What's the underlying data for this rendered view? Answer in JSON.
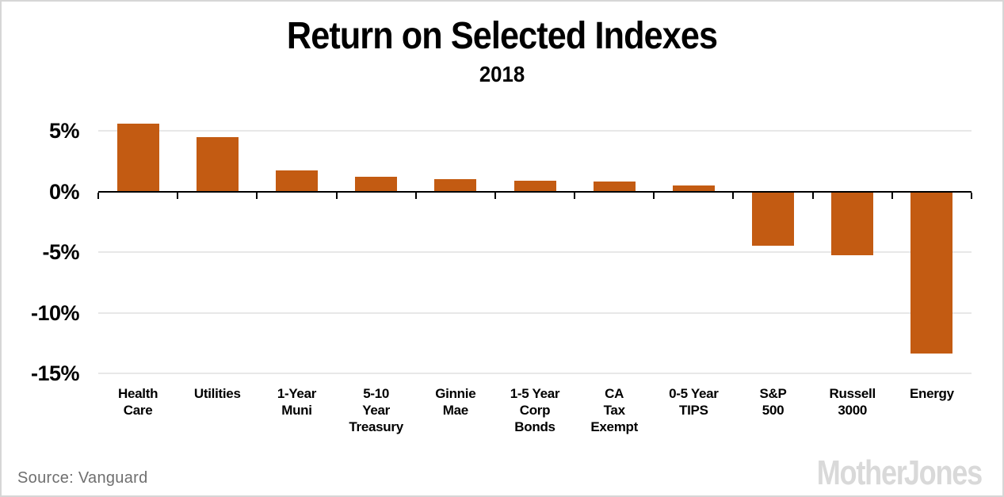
{
  "title": "Return on Selected Indexes",
  "subtitle": "2018",
  "footer": {
    "source": "Source: Vanguard",
    "branding": "Mother Jones"
  },
  "colors": {
    "bar": "#c35b12",
    "gridline": "#e8e8e8",
    "axis": "#000000",
    "text": "#000000",
    "source_text": "#6f6f6f",
    "logo": "#d9d9d9",
    "border": "#d6d6d6",
    "background": "#ffffff"
  },
  "chart_data": {
    "type": "bar",
    "title": "Return on Selected Indexes",
    "subtitle": "2018",
    "source": "Source: Vanguard",
    "unit": "percent",
    "categories": [
      "Health Care",
      "Utilities",
      "1-Year Muni",
      "5-10 Year Treasury",
      "Ginnie Mae",
      "1-5 Year Corp Bonds",
      "CA Tax Exempt",
      "0-5 Year TIPS",
      "S&P 500",
      "Russell 3000",
      "Energy"
    ],
    "category_label_lines": [
      [
        "Health",
        "Care"
      ],
      [
        "Utilities"
      ],
      [
        "1-Year",
        "Muni"
      ],
      [
        "5-10",
        "Year",
        "Treasury"
      ],
      [
        "Ginnie",
        "Mae"
      ],
      [
        "1-5 Year",
        "Corp",
        "Bonds"
      ],
      [
        "CA",
        "Tax",
        "Exempt"
      ],
      [
        "0-5 Year",
        "TIPS"
      ],
      [
        "S&P",
        "500"
      ],
      [
        "Russell",
        "3000"
      ],
      [
        "Energy"
      ]
    ],
    "values": [
      5.6,
      4.5,
      1.7,
      1.2,
      1.0,
      0.9,
      0.8,
      0.5,
      -4.4,
      -5.2,
      -13.3
    ],
    "y_ticks": [
      {
        "label": "5%",
        "value": 5
      },
      {
        "label": "0%",
        "value": 0
      },
      {
        "label": "-5%",
        "value": -5
      },
      {
        "label": "-10%",
        "value": -10
      },
      {
        "label": "-15%",
        "value": -15
      }
    ],
    "ylim": [
      -16.5,
      6.6
    ],
    "grid": true,
    "legend": false,
    "bar_color": "#c35b12"
  }
}
